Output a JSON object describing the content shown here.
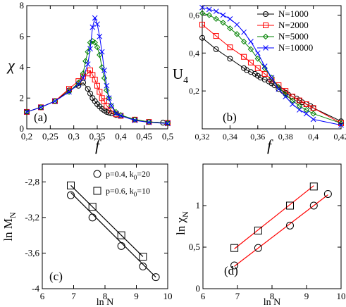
{
  "chart_data": [
    {
      "type": "line",
      "panel_label": "(a)",
      "xlabel": "f",
      "ylabel": "χ",
      "xlim": [
        0.2,
        0.5
      ],
      "ylim": [
        0,
        8
      ],
      "xticks": [
        0.2,
        0.25,
        0.3,
        0.35,
        0.4,
        0.45,
        0.5
      ],
      "xtick_labels": [
        "0,2",
        "0,25",
        "0,3",
        "0,35",
        "0,4",
        "0,45",
        "0,5"
      ],
      "yticks": [
        0,
        2,
        4,
        6,
        8
      ],
      "ytick_labels": [
        "0",
        "2",
        "4",
        "6",
        "8"
      ],
      "legend": "none",
      "series": [
        {
          "name": "N=1000",
          "color": "#000000",
          "marker": "circle",
          "x": [
            0.2,
            0.23,
            0.26,
            0.29,
            0.31,
            0.32,
            0.33,
            0.335,
            0.34,
            0.345,
            0.35,
            0.355,
            0.36,
            0.365,
            0.37,
            0.375,
            0.38,
            0.39,
            0.4,
            0.43,
            0.46,
            0.49,
            0.5
          ],
          "y": [
            1.1,
            1.4,
            1.8,
            2.5,
            2.8,
            3.0,
            2.6,
            2.3,
            2.0,
            1.8,
            1.6,
            1.45,
            1.3,
            1.2,
            1.1,
            1.05,
            1.0,
            0.9,
            0.85,
            0.6,
            0.45,
            0.4,
            0.38
          ]
        },
        {
          "name": "N=2000",
          "color": "#ff0000",
          "marker": "square",
          "x": [
            0.2,
            0.23,
            0.26,
            0.29,
            0.31,
            0.32,
            0.33,
            0.335,
            0.34,
            0.345,
            0.35,
            0.355,
            0.36,
            0.365,
            0.37,
            0.38,
            0.39,
            0.4,
            0.43,
            0.46,
            0.5
          ],
          "y": [
            1.1,
            1.4,
            1.8,
            2.6,
            3.1,
            3.4,
            3.6,
            3.8,
            3.5,
            3.2,
            2.8,
            2.4,
            2.0,
            1.8,
            1.5,
            1.2,
            0.95,
            0.85,
            0.6,
            0.45,
            0.38
          ]
        },
        {
          "name": "N=5000",
          "color": "#008000",
          "marker": "diamond",
          "x": [
            0.2,
            0.23,
            0.26,
            0.29,
            0.31,
            0.32,
            0.325,
            0.33,
            0.335,
            0.34,
            0.345,
            0.35,
            0.355,
            0.36,
            0.365,
            0.37,
            0.375,
            0.38,
            0.39,
            0.4,
            0.43,
            0.46,
            0.5
          ],
          "y": [
            1.1,
            1.4,
            1.8,
            2.4,
            3.0,
            3.6,
            4.4,
            5.0,
            5.6,
            5.7,
            5.6,
            5.3,
            4.8,
            4.0,
            3.3,
            2.5,
            2.0,
            1.5,
            1.1,
            0.9,
            0.6,
            0.45,
            0.38
          ]
        },
        {
          "name": "N=10000",
          "color": "#0000ff",
          "marker": "cross",
          "x": [
            0.2,
            0.23,
            0.26,
            0.29,
            0.31,
            0.32,
            0.33,
            0.335,
            0.34,
            0.345,
            0.35,
            0.355,
            0.36,
            0.365,
            0.37,
            0.375,
            0.38,
            0.39,
            0.4,
            0.43,
            0.46,
            0.5
          ],
          "y": [
            1.1,
            1.4,
            1.8,
            2.4,
            2.9,
            3.3,
            4.2,
            5.2,
            6.6,
            7.2,
            6.8,
            6.0,
            5.0,
            3.8,
            2.8,
            2.0,
            1.5,
            1.0,
            0.85,
            0.55,
            0.42,
            0.35
          ]
        }
      ]
    },
    {
      "type": "line",
      "panel_label": "(b)",
      "xlabel": "f",
      "ylabel": "U",
      "ylabel_subscript": "4",
      "xlim": [
        0.32,
        0.42
      ],
      "ylim": [
        0,
        0.65
      ],
      "xticks": [
        0.32,
        0.34,
        0.36,
        0.38,
        0.4,
        0.42
      ],
      "xtick_labels": [
        "0,32",
        "0,34",
        "0,36",
        "0,38",
        "0,4",
        "0,42"
      ],
      "yticks": [
        0.2,
        0.4,
        0.6
      ],
      "ytick_labels": [
        "0,2",
        "0,4",
        "0,6"
      ],
      "legend": "top-right",
      "series": [
        {
          "name": "N=1000",
          "color": "#000000",
          "marker": "circle",
          "x": [
            0.32,
            0.33,
            0.34,
            0.35,
            0.352,
            0.355,
            0.358,
            0.36,
            0.362,
            0.365,
            0.368,
            0.37,
            0.372,
            0.375,
            0.378,
            0.38,
            0.382,
            0.385,
            0.388,
            0.39,
            0.392,
            0.395,
            0.398,
            0.4,
            0.42
          ],
          "y": [
            0.48,
            0.42,
            0.37,
            0.32,
            0.31,
            0.3,
            0.29,
            0.28,
            0.27,
            0.26,
            0.25,
            0.24,
            0.23,
            0.21,
            0.2,
            0.19,
            0.18,
            0.17,
            0.16,
            0.15,
            0.14,
            0.13,
            0.12,
            0.11,
            0.04
          ]
        },
        {
          "name": "N=2000",
          "color": "#ff0000",
          "marker": "square",
          "x": [
            0.32,
            0.33,
            0.34,
            0.35,
            0.355,
            0.36,
            0.365,
            0.37,
            0.375,
            0.38,
            0.385,
            0.39,
            0.395,
            0.4,
            0.42
          ],
          "y": [
            0.55,
            0.49,
            0.43,
            0.38,
            0.35,
            0.32,
            0.29,
            0.26,
            0.23,
            0.2,
            0.17,
            0.15,
            0.13,
            0.11,
            0.03
          ]
        },
        {
          "name": "N=5000",
          "color": "#008000",
          "marker": "diamond",
          "x": [
            0.32,
            0.325,
            0.33,
            0.335,
            0.34,
            0.345,
            0.35,
            0.355,
            0.36,
            0.365,
            0.37,
            0.375,
            0.38,
            0.385,
            0.39,
            0.395,
            0.4,
            0.42
          ],
          "y": [
            0.61,
            0.6,
            0.58,
            0.56,
            0.53,
            0.5,
            0.46,
            0.42,
            0.37,
            0.32,
            0.27,
            0.22,
            0.18,
            0.15,
            0.12,
            0.1,
            0.08,
            0.03
          ]
        },
        {
          "name": "N=10000",
          "color": "#0000ff",
          "marker": "cross",
          "x": [
            0.32,
            0.325,
            0.33,
            0.335,
            0.34,
            0.345,
            0.35,
            0.355,
            0.36,
            0.365,
            0.37,
            0.375,
            0.38,
            0.385,
            0.39,
            0.395,
            0.4,
            0.42
          ],
          "y": [
            0.64,
            0.63,
            0.62,
            0.6,
            0.58,
            0.55,
            0.51,
            0.46,
            0.4,
            0.33,
            0.27,
            0.21,
            0.17,
            0.13,
            0.1,
            0.08,
            0.05,
            0.02
          ]
        }
      ]
    },
    {
      "type": "scatter",
      "panel_label": "(c)",
      "xlabel": "ln N",
      "ylabel": "ln M",
      "ylabel_subscript": "N",
      "xlim": [
        6,
        10
      ],
      "ylim": [
        -4,
        -2.6
      ],
      "xticks": [
        6,
        7,
        8,
        9,
        10
      ],
      "xtick_labels": [
        "6",
        "7",
        "8",
        "9",
        "10"
      ],
      "yticks": [
        -4,
        -3.6,
        -3.2,
        -2.8
      ],
      "ytick_labels": [
        "-4",
        "-3,6",
        "-3,2",
        "-2,8"
      ],
      "legend": "top-right",
      "series": [
        {
          "name": "p=0.4, k",
          "name_subscript": "0",
          "name_suffix": "=20",
          "color": "#000000",
          "marker": "circle",
          "x": [
            6.91,
            7.6,
            8.52,
            9.21,
            9.62
          ],
          "y": [
            -2.95,
            -3.2,
            -3.52,
            -3.75,
            -3.87
          ],
          "fit": [
            [
              6.91,
              -2.92
            ],
            [
              9.62,
              -3.87
            ]
          ]
        },
        {
          "name": "p=0.6, k",
          "name_subscript": "0",
          "name_suffix": "=10",
          "color": "#000000",
          "marker": "square",
          "x": [
            6.91,
            7.6,
            8.52,
            9.21
          ],
          "y": [
            -2.84,
            -3.08,
            -3.4,
            -3.64
          ],
          "fit": [
            [
              6.91,
              -2.84
            ],
            [
              9.21,
              -3.64
            ]
          ]
        }
      ]
    },
    {
      "type": "scatter",
      "panel_label": "(d)",
      "xlabel": "ln N",
      "ylabel": "ln χ",
      "ylabel_subscript": "N",
      "xlim": [
        6,
        10
      ],
      "ylim": [
        0,
        1.5
      ],
      "xticks": [
        6,
        7,
        8,
        9,
        10
      ],
      "xtick_labels": [
        "6",
        "7",
        "8",
        "9",
        "10"
      ],
      "yticks": [
        0,
        0.5,
        1
      ],
      "ytick_labels": [
        "0",
        "0,5",
        "1"
      ],
      "legend": "none",
      "series": [
        {
          "color": "#000000",
          "marker": "circle",
          "fit_color": "#ff0000",
          "x": [
            6.91,
            7.6,
            8.52,
            9.21,
            9.62
          ],
          "y": [
            0.28,
            0.49,
            0.76,
            1.0,
            1.14
          ],
          "fit": [
            [
              6.91,
              0.27
            ],
            [
              9.62,
              1.13
            ]
          ]
        },
        {
          "color": "#000000",
          "marker": "square",
          "fit_color": "#ff0000",
          "x": [
            6.91,
            7.6,
            8.52,
            9.21
          ],
          "y": [
            0.49,
            0.7,
            1.0,
            1.23
          ],
          "fit": [
            [
              6.91,
              0.48
            ],
            [
              9.21,
              1.24
            ]
          ]
        }
      ]
    }
  ]
}
